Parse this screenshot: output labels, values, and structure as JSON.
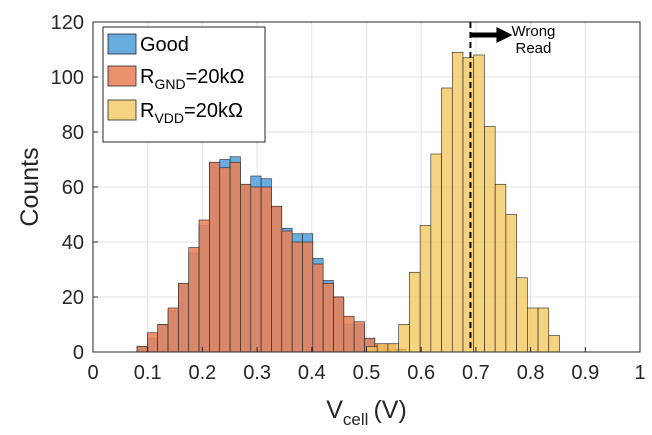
{
  "chart_data": {
    "type": "bar",
    "xlabel_main": "V",
    "xlabel_sub": "cell",
    "xlabel_unit": "(V)",
    "ylabel": "Counts",
    "xlim": [
      0,
      1
    ],
    "ylim": [
      0,
      120
    ],
    "xticks": [
      0,
      0.1,
      0.2,
      0.3,
      0.4,
      0.5,
      0.6,
      0.7,
      0.8,
      0.9,
      1
    ],
    "yticks": [
      0,
      20,
      40,
      60,
      80,
      100,
      120
    ],
    "grid": true,
    "legend_position": "top-left",
    "series": [
      {
        "name_main": "Good",
        "name_sub": "",
        "name_rest": "",
        "color": "#4e9fdb",
        "bin_width": 0.0189,
        "bins": [
          {
            "x0": 0.0805,
            "count": 2
          },
          {
            "x0": 0.0994,
            "count": 5
          },
          {
            "x0": 0.1183,
            "count": 10
          },
          {
            "x0": 0.1372,
            "count": 15
          },
          {
            "x0": 0.1561,
            "count": 25
          },
          {
            "x0": 0.175,
            "count": 36
          },
          {
            "x0": 0.1939,
            "count": 46
          },
          {
            "x0": 0.2128,
            "count": 69
          },
          {
            "x0": 0.2317,
            "count": 70
          },
          {
            "x0": 0.2506,
            "count": 71
          },
          {
            "x0": 0.2695,
            "count": 61
          },
          {
            "x0": 0.2884,
            "count": 64
          },
          {
            "x0": 0.3073,
            "count": 63
          },
          {
            "x0": 0.3262,
            "count": 53
          },
          {
            "x0": 0.3451,
            "count": 45
          },
          {
            "x0": 0.364,
            "count": 43
          },
          {
            "x0": 0.3829,
            "count": 43
          },
          {
            "x0": 0.4018,
            "count": 34
          },
          {
            "x0": 0.4207,
            "count": 26
          },
          {
            "x0": 0.4396,
            "count": 20
          },
          {
            "x0": 0.4585,
            "count": 10
          },
          {
            "x0": 0.4774,
            "count": 10
          },
          {
            "x0": 0.4963,
            "count": 5
          },
          {
            "x0": 0.5152,
            "count": 2
          },
          {
            "x0": 0.5341,
            "count": 1
          },
          {
            "x0": 0.553,
            "count": 1
          }
        ]
      },
      {
        "name_main": "R",
        "name_sub": "GND",
        "name_rest": "=20kΩ",
        "color": "#e8825a",
        "bin_width": 0.0189,
        "bins": [
          {
            "x0": 0.0805,
            "count": 2
          },
          {
            "x0": 0.0994,
            "count": 7
          },
          {
            "x0": 0.1183,
            "count": 10
          },
          {
            "x0": 0.1372,
            "count": 16
          },
          {
            "x0": 0.1561,
            "count": 25
          },
          {
            "x0": 0.175,
            "count": 38
          },
          {
            "x0": 0.1939,
            "count": 48
          },
          {
            "x0": 0.2128,
            "count": 69
          },
          {
            "x0": 0.2317,
            "count": 67
          },
          {
            "x0": 0.2506,
            "count": 69
          },
          {
            "x0": 0.2695,
            "count": 61
          },
          {
            "x0": 0.2884,
            "count": 60
          },
          {
            "x0": 0.3073,
            "count": 60
          },
          {
            "x0": 0.3262,
            "count": 53
          },
          {
            "x0": 0.3451,
            "count": 44
          },
          {
            "x0": 0.364,
            "count": 40
          },
          {
            "x0": 0.3829,
            "count": 40
          },
          {
            "x0": 0.4018,
            "count": 32
          },
          {
            "x0": 0.4207,
            "count": 25
          },
          {
            "x0": 0.4396,
            "count": 20
          },
          {
            "x0": 0.4585,
            "count": 13
          },
          {
            "x0": 0.4774,
            "count": 11
          },
          {
            "x0": 0.4963,
            "count": 5
          },
          {
            "x0": 0.5152,
            "count": 3
          },
          {
            "x0": 0.5341,
            "count": 3
          },
          {
            "x0": 0.553,
            "count": 1
          }
        ]
      },
      {
        "name_main": "R",
        "name_sub": "VDD",
        "name_rest": "=20kΩ",
        "color": "#f2c75e",
        "bin_width": 0.0196,
        "bins": [
          {
            "x0": 0.5,
            "count": 2
          },
          {
            "x0": 0.5196,
            "count": 3
          },
          {
            "x0": 0.5392,
            "count": 3
          },
          {
            "x0": 0.5588,
            "count": 10
          },
          {
            "x0": 0.5784,
            "count": 29
          },
          {
            "x0": 0.598,
            "count": 46
          },
          {
            "x0": 0.6176,
            "count": 72
          },
          {
            "x0": 0.6372,
            "count": 96
          },
          {
            "x0": 0.6568,
            "count": 109
          },
          {
            "x0": 0.6764,
            "count": 107
          },
          {
            "x0": 0.696,
            "count": 108
          },
          {
            "x0": 0.7156,
            "count": 82
          },
          {
            "x0": 0.7352,
            "count": 61
          },
          {
            "x0": 0.7548,
            "count": 50
          },
          {
            "x0": 0.7744,
            "count": 27
          },
          {
            "x0": 0.794,
            "count": 16
          },
          {
            "x0": 0.8136,
            "count": 16
          },
          {
            "x0": 0.8332,
            "count": 6
          }
        ]
      }
    ],
    "threshold": {
      "x": 0.69
    },
    "annotation_lines": [
      "Wrong",
      "Read"
    ]
  }
}
